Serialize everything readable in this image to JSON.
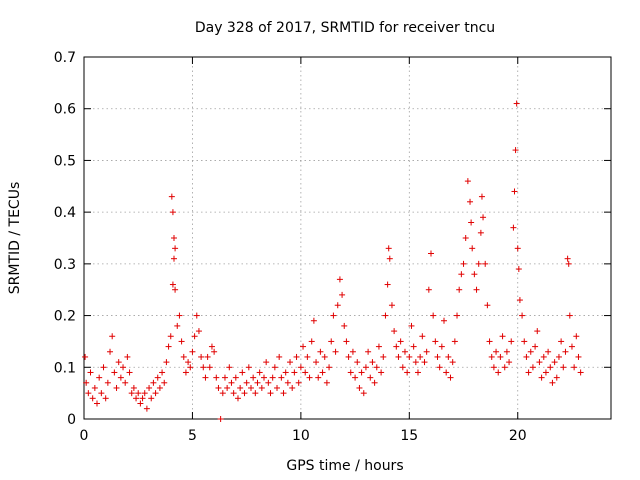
{
  "chart_data": {
    "type": "scatter",
    "title": "Day 328 of 2017, SRMTID for receiver tncu",
    "xlabel": "GPS time / hours",
    "ylabel": "SRMTID / TECUs",
    "xlim": [
      0,
      24.3
    ],
    "ylim": [
      0,
      0.7
    ],
    "xticks": [
      0,
      5,
      10,
      15,
      20
    ],
    "xtick_labels": [
      "0",
      "5",
      "10",
      "15",
      "20"
    ],
    "yticks": [
      0,
      0.1,
      0.2,
      0.3,
      0.4,
      0.5,
      0.6,
      0.7
    ],
    "ytick_labels": [
      "0",
      "0.1",
      "0.2",
      "0.3",
      "0.4",
      "0.5",
      "0.6",
      "0.7"
    ],
    "grid": true,
    "marker": "+",
    "color": "#e00000",
    "series": [
      {
        "name": "SRMTID",
        "points": [
          [
            0.05,
            0.12
          ],
          [
            0.1,
            0.07
          ],
          [
            0.2,
            0.05
          ],
          [
            0.3,
            0.09
          ],
          [
            0.4,
            0.04
          ],
          [
            0.5,
            0.06
          ],
          [
            0.6,
            0.03
          ],
          [
            0.7,
            0.08
          ],
          [
            0.8,
            0.05
          ],
          [
            0.9,
            0.1
          ],
          [
            1.0,
            0.04
          ],
          [
            1.1,
            0.07
          ],
          [
            1.2,
            0.13
          ],
          [
            1.3,
            0.16
          ],
          [
            1.4,
            0.09
          ],
          [
            1.5,
            0.06
          ],
          [
            1.6,
            0.11
          ],
          [
            1.7,
            0.08
          ],
          [
            1.8,
            0.1
          ],
          [
            1.9,
            0.07
          ],
          [
            2.0,
            0.12
          ],
          [
            2.1,
            0.09
          ],
          [
            2.2,
            0.05
          ],
          [
            2.3,
            0.06
          ],
          [
            2.4,
            0.04
          ],
          [
            2.5,
            0.05
          ],
          [
            2.6,
            0.03
          ],
          [
            2.7,
            0.04
          ],
          [
            2.8,
            0.05
          ],
          [
            2.9,
            0.02
          ],
          [
            3.0,
            0.06
          ],
          [
            3.1,
            0.04
          ],
          [
            3.2,
            0.07
          ],
          [
            3.3,
            0.05
          ],
          [
            3.4,
            0.08
          ],
          [
            3.5,
            0.06
          ],
          [
            3.6,
            0.09
          ],
          [
            3.7,
            0.07
          ],
          [
            3.8,
            0.11
          ],
          [
            3.9,
            0.14
          ],
          [
            4.0,
            0.16
          ],
          [
            4.05,
            0.43
          ],
          [
            4.1,
            0.4
          ],
          [
            4.15,
            0.35
          ],
          [
            4.2,
            0.33
          ],
          [
            4.15,
            0.31
          ],
          [
            4.1,
            0.26
          ],
          [
            4.2,
            0.25
          ],
          [
            4.3,
            0.18
          ],
          [
            4.4,
            0.2
          ],
          [
            4.5,
            0.15
          ],
          [
            4.6,
            0.12
          ],
          [
            4.7,
            0.09
          ],
          [
            4.8,
            0.11
          ],
          [
            4.9,
            0.1
          ],
          [
            5.0,
            0.13
          ],
          [
            5.1,
            0.16
          ],
          [
            5.2,
            0.2
          ],
          [
            5.3,
            0.17
          ],
          [
            5.4,
            0.12
          ],
          [
            5.5,
            0.1
          ],
          [
            5.6,
            0.08
          ],
          [
            5.7,
            0.12
          ],
          [
            5.8,
            0.1
          ],
          [
            5.9,
            0.14
          ],
          [
            6.0,
            0.13
          ],
          [
            6.1,
            0.08
          ],
          [
            6.2,
            0.06
          ],
          [
            6.3,
            0.0
          ],
          [
            6.4,
            0.05
          ],
          [
            6.5,
            0.08
          ],
          [
            6.6,
            0.06
          ],
          [
            6.7,
            0.1
          ],
          [
            6.8,
            0.07
          ],
          [
            6.9,
            0.05
          ],
          [
            7.0,
            0.08
          ],
          [
            7.1,
            0.04
          ],
          [
            7.2,
            0.06
          ],
          [
            7.3,
            0.09
          ],
          [
            7.4,
            0.05
          ],
          [
            7.5,
            0.07
          ],
          [
            7.6,
            0.1
          ],
          [
            7.7,
            0.06
          ],
          [
            7.8,
            0.08
          ],
          [
            7.9,
            0.05
          ],
          [
            8.0,
            0.07
          ],
          [
            8.1,
            0.09
          ],
          [
            8.2,
            0.06
          ],
          [
            8.3,
            0.08
          ],
          [
            8.4,
            0.11
          ],
          [
            8.5,
            0.07
          ],
          [
            8.6,
            0.05
          ],
          [
            8.7,
            0.08
          ],
          [
            8.8,
            0.1
          ],
          [
            8.9,
            0.06
          ],
          [
            9.0,
            0.12
          ],
          [
            9.1,
            0.08
          ],
          [
            9.2,
            0.05
          ],
          [
            9.3,
            0.09
          ],
          [
            9.4,
            0.07
          ],
          [
            9.5,
            0.11
          ],
          [
            9.6,
            0.06
          ],
          [
            9.7,
            0.09
          ],
          [
            9.8,
            0.12
          ],
          [
            9.9,
            0.07
          ],
          [
            10.0,
            0.1
          ],
          [
            10.1,
            0.14
          ],
          [
            10.2,
            0.09
          ],
          [
            10.3,
            0.12
          ],
          [
            10.4,
            0.08
          ],
          [
            10.5,
            0.15
          ],
          [
            10.6,
            0.19
          ],
          [
            10.7,
            0.11
          ],
          [
            10.8,
            0.08
          ],
          [
            10.9,
            0.13
          ],
          [
            11.0,
            0.09
          ],
          [
            11.1,
            0.12
          ],
          [
            11.2,
            0.07
          ],
          [
            11.3,
            0.1
          ],
          [
            11.4,
            0.15
          ],
          [
            11.5,
            0.2
          ],
          [
            11.6,
            0.13
          ],
          [
            11.7,
            0.22
          ],
          [
            11.8,
            0.27
          ],
          [
            11.9,
            0.24
          ],
          [
            12.0,
            0.18
          ],
          [
            12.1,
            0.15
          ],
          [
            12.2,
            0.12
          ],
          [
            12.3,
            0.09
          ],
          [
            12.4,
            0.13
          ],
          [
            12.5,
            0.08
          ],
          [
            12.6,
            0.11
          ],
          [
            12.7,
            0.06
          ],
          [
            12.8,
            0.09
          ],
          [
            12.9,
            0.05
          ],
          [
            13.0,
            0.1
          ],
          [
            13.1,
            0.13
          ],
          [
            13.2,
            0.08
          ],
          [
            13.3,
            0.11
          ],
          [
            13.4,
            0.07
          ],
          [
            13.5,
            0.1
          ],
          [
            13.6,
            0.14
          ],
          [
            13.7,
            0.09
          ],
          [
            13.8,
            0.12
          ],
          [
            13.9,
            0.2
          ],
          [
            14.0,
            0.26
          ],
          [
            14.05,
            0.33
          ],
          [
            14.1,
            0.31
          ],
          [
            14.2,
            0.22
          ],
          [
            14.3,
            0.17
          ],
          [
            14.4,
            0.14
          ],
          [
            14.5,
            0.12
          ],
          [
            14.6,
            0.15
          ],
          [
            14.7,
            0.1
          ],
          [
            14.8,
            0.13
          ],
          [
            14.9,
            0.09
          ],
          [
            15.0,
            0.12
          ],
          [
            15.1,
            0.18
          ],
          [
            15.2,
            0.14
          ],
          [
            15.3,
            0.11
          ],
          [
            15.4,
            0.09
          ],
          [
            15.5,
            0.12
          ],
          [
            15.6,
            0.16
          ],
          [
            15.7,
            0.11
          ],
          [
            15.8,
            0.13
          ],
          [
            15.9,
            0.25
          ],
          [
            16.0,
            0.32
          ],
          [
            16.1,
            0.2
          ],
          [
            16.2,
            0.15
          ],
          [
            16.3,
            0.12
          ],
          [
            16.4,
            0.1
          ],
          [
            16.5,
            0.14
          ],
          [
            16.6,
            0.19
          ],
          [
            16.7,
            0.09
          ],
          [
            16.8,
            0.12
          ],
          [
            16.9,
            0.08
          ],
          [
            17.0,
            0.11
          ],
          [
            17.1,
            0.15
          ],
          [
            17.2,
            0.2
          ],
          [
            17.3,
            0.25
          ],
          [
            17.4,
            0.28
          ],
          [
            17.5,
            0.3
          ],
          [
            17.6,
            0.35
          ],
          [
            17.7,
            0.46
          ],
          [
            17.8,
            0.42
          ],
          [
            17.85,
            0.38
          ],
          [
            17.9,
            0.33
          ],
          [
            18.0,
            0.28
          ],
          [
            18.1,
            0.25
          ],
          [
            18.2,
            0.3
          ],
          [
            18.3,
            0.36
          ],
          [
            18.35,
            0.43
          ],
          [
            18.4,
            0.39
          ],
          [
            18.5,
            0.3
          ],
          [
            18.6,
            0.22
          ],
          [
            18.7,
            0.15
          ],
          [
            18.8,
            0.12
          ],
          [
            18.9,
            0.1
          ],
          [
            19.0,
            0.13
          ],
          [
            19.1,
            0.09
          ],
          [
            19.2,
            0.12
          ],
          [
            19.3,
            0.16
          ],
          [
            19.4,
            0.1
          ],
          [
            19.5,
            0.13
          ],
          [
            19.6,
            0.11
          ],
          [
            19.7,
            0.15
          ],
          [
            19.8,
            0.37
          ],
          [
            19.85,
            0.44
          ],
          [
            19.9,
            0.52
          ],
          [
            19.95,
            0.61
          ],
          [
            20.0,
            0.33
          ],
          [
            20.05,
            0.29
          ],
          [
            20.1,
            0.23
          ],
          [
            20.2,
            0.2
          ],
          [
            20.3,
            0.15
          ],
          [
            20.4,
            0.12
          ],
          [
            20.5,
            0.09
          ],
          [
            20.6,
            0.13
          ],
          [
            20.7,
            0.1
          ],
          [
            20.8,
            0.14
          ],
          [
            20.9,
            0.17
          ],
          [
            21.0,
            0.11
          ],
          [
            21.1,
            0.08
          ],
          [
            21.2,
            0.12
          ],
          [
            21.3,
            0.09
          ],
          [
            21.4,
            0.13
          ],
          [
            21.5,
            0.1
          ],
          [
            21.6,
            0.07
          ],
          [
            21.7,
            0.11
          ],
          [
            21.8,
            0.08
          ],
          [
            21.9,
            0.12
          ],
          [
            22.0,
            0.15
          ],
          [
            22.1,
            0.1
          ],
          [
            22.2,
            0.13
          ],
          [
            22.3,
            0.31
          ],
          [
            22.35,
            0.3
          ],
          [
            22.4,
            0.2
          ],
          [
            22.5,
            0.14
          ],
          [
            22.6,
            0.1
          ],
          [
            22.7,
            0.16
          ],
          [
            22.8,
            0.12
          ],
          [
            22.9,
            0.09
          ]
        ]
      }
    ]
  }
}
